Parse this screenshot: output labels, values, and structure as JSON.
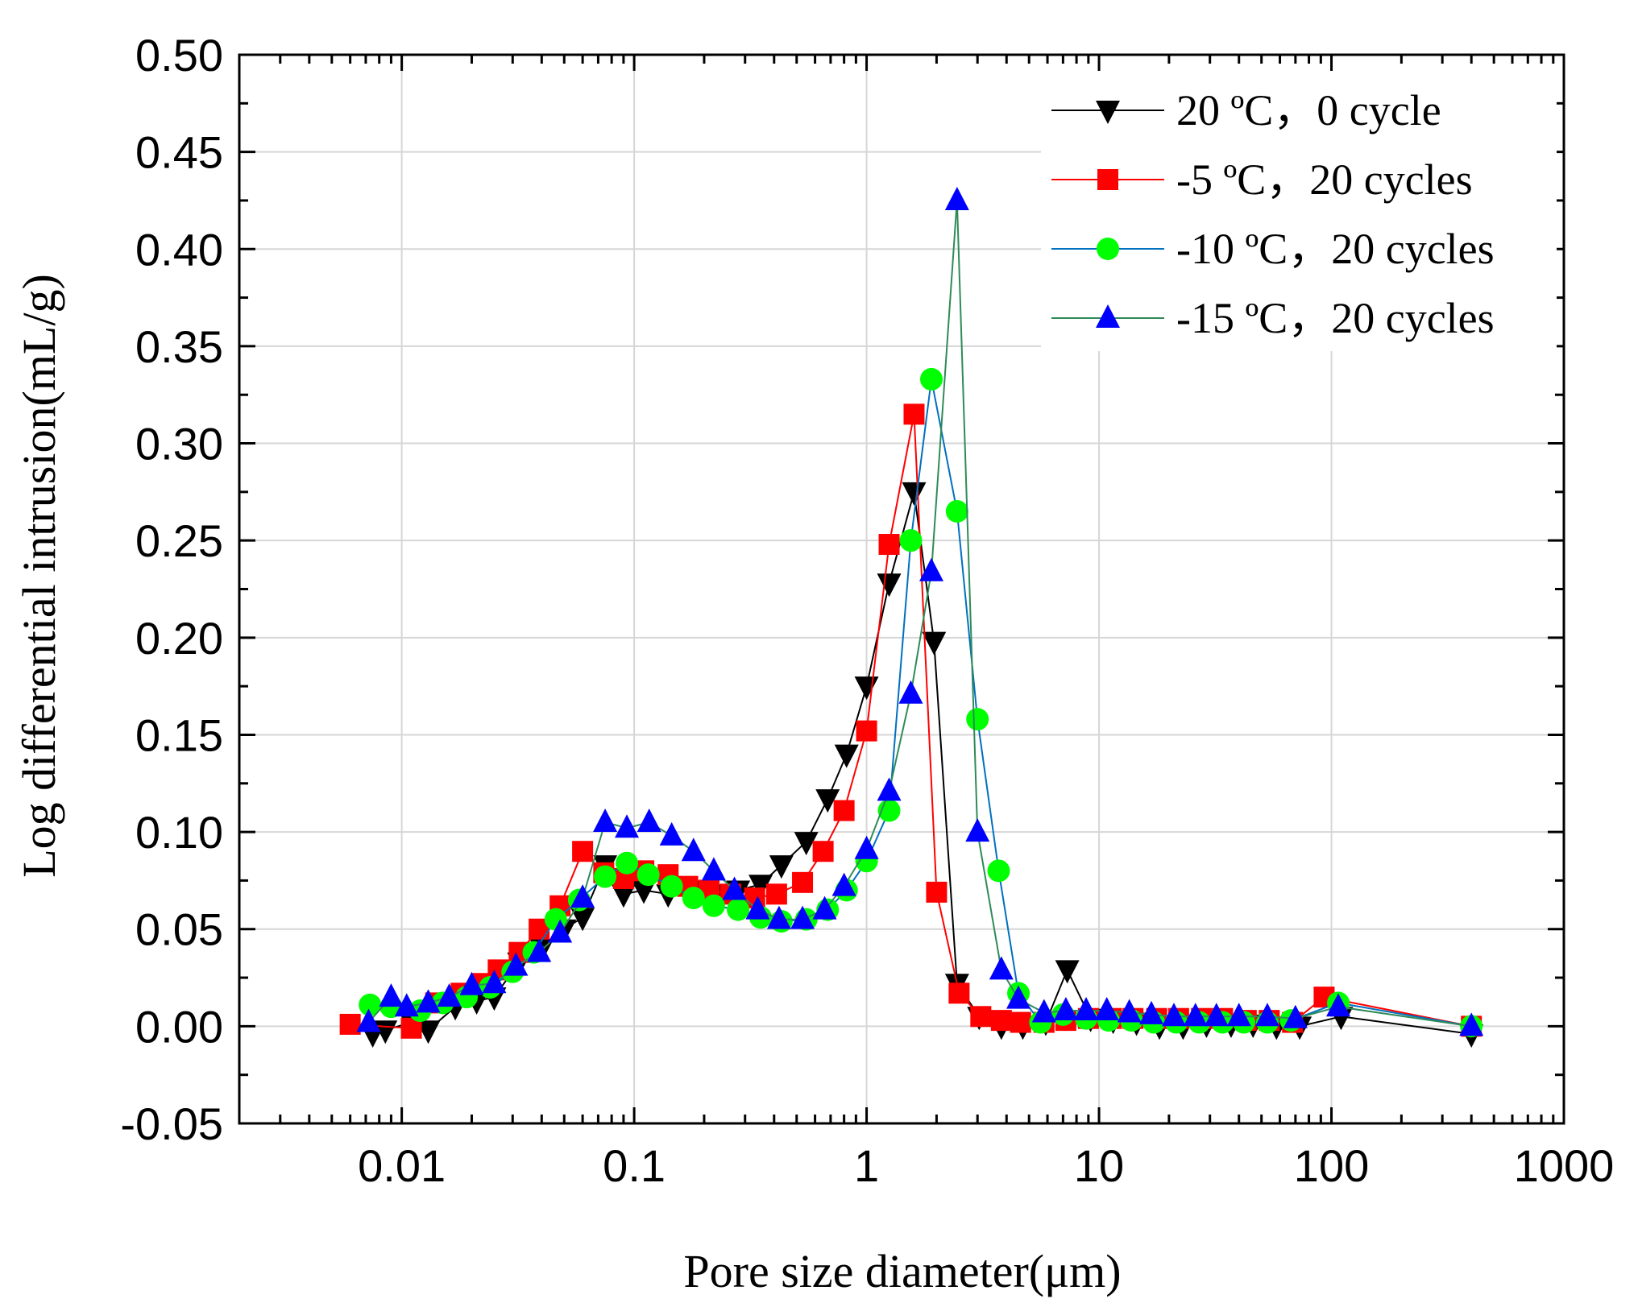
{
  "chart_data": {
    "type": "scatter",
    "xlabel": "Pore size diameter(μm)",
    "ylabel": "Log differential intrusion(mL/g)",
    "xscale": "log",
    "xlim": [
      0.002,
      1000
    ],
    "ylim": [
      -0.05,
      0.5
    ],
    "xticks": [
      0.01,
      0.1,
      1,
      10,
      100,
      1000
    ],
    "xtick_labels": [
      "0.01",
      "0.1",
      "1",
      "10",
      "100",
      "1000"
    ],
    "yticks": [
      -0.05,
      0.0,
      0.05,
      0.1,
      0.15,
      0.2,
      0.25,
      0.3,
      0.35,
      0.4,
      0.45,
      0.5
    ],
    "ytick_labels": [
      "-0.05",
      "0.00",
      "0.05",
      "0.10",
      "0.15",
      "0.20",
      "0.25",
      "0.30",
      "0.35",
      "0.40",
      "0.45",
      "0.50"
    ],
    "grid": true,
    "legend_position": "top-right",
    "series": [
      {
        "name": "20 ºC，0 cycle",
        "color": "#000000",
        "marker": "triangle-down",
        "x": [
          0.0075,
          0.0085,
          0.011,
          0.013,
          0.017,
          0.021,
          0.025,
          0.032,
          0.04,
          0.05,
          0.06,
          0.075,
          0.09,
          0.11,
          0.14,
          0.18,
          0.22,
          0.28,
          0.35,
          0.43,
          0.55,
          0.68,
          0.82,
          1.0,
          1.25,
          1.6,
          1.95,
          2.45,
          3.05,
          3.8,
          4.7,
          5.9,
          7.3,
          9.2,
          11.5,
          14.5,
          18.2,
          23,
          29,
          37,
          46,
          58,
          73,
          110,
          400
        ],
        "y": [
          -0.004,
          -0.002,
          0.002,
          -0.002,
          0.01,
          0.013,
          0.015,
          0.033,
          0.04,
          0.05,
          0.056,
          0.083,
          0.068,
          0.07,
          0.068,
          0.07,
          0.068,
          0.07,
          0.073,
          0.083,
          0.095,
          0.117,
          0.14,
          0.175,
          0.228,
          0.275,
          0.198,
          0.022,
          0.005,
          0.0,
          0.0,
          0.002,
          0.029,
          0.004,
          0.003,
          0.002,
          0.0,
          0.0,
          0.001,
          0.001,
          0.001,
          0.0,
          0.0,
          0.005,
          -0.004
        ]
      },
      {
        "name": "-5 ºC，20 cycles",
        "color": "#ff0000",
        "marker": "square",
        "x": [
          0.006,
          0.011,
          0.014,
          0.018,
          0.022,
          0.026,
          0.032,
          0.039,
          0.048,
          0.06,
          0.074,
          0.09,
          0.11,
          0.14,
          0.17,
          0.21,
          0.26,
          0.33,
          0.41,
          0.53,
          0.65,
          0.8,
          1.0,
          1.25,
          1.6,
          2.0,
          2.5,
          3.1,
          3.8,
          4.6,
          5.8,
          7.2,
          9,
          11.3,
          14,
          17.7,
          22,
          27.6,
          34,
          43,
          54,
          68,
          93,
          400
        ],
        "y": [
          0.001,
          -0.001,
          0.012,
          0.017,
          0.022,
          0.029,
          0.038,
          0.05,
          0.062,
          0.09,
          0.079,
          0.076,
          0.08,
          0.078,
          0.072,
          0.07,
          0.068,
          0.066,
          0.068,
          0.074,
          0.09,
          0.111,
          0.152,
          0.248,
          0.315,
          0.069,
          0.017,
          0.005,
          0.003,
          0.002,
          0.002,
          0.003,
          0.004,
          0.004,
          0.004,
          0.004,
          0.004,
          0.004,
          0.004,
          0.003,
          0.003,
          0.002,
          0.015,
          0.0
        ]
      },
      {
        "name": "-10 ºC，20 cycles",
        "color": "#00ff00",
        "line_color": "#0070c0",
        "marker": "circle",
        "x": [
          0.0073,
          0.009,
          0.012,
          0.015,
          0.019,
          0.024,
          0.03,
          0.037,
          0.046,
          0.058,
          0.075,
          0.093,
          0.115,
          0.145,
          0.18,
          0.22,
          0.28,
          0.35,
          0.43,
          0.55,
          0.68,
          0.82,
          1.0,
          1.25,
          1.55,
          1.9,
          2.45,
          3.0,
          3.7,
          4.5,
          5.6,
          7.0,
          8.8,
          11,
          13.8,
          17.2,
          21.5,
          27,
          34,
          42,
          53,
          67,
          107,
          400
        ],
        "y": [
          0.011,
          0.01,
          0.008,
          0.012,
          0.015,
          0.02,
          0.028,
          0.038,
          0.055,
          0.065,
          0.077,
          0.084,
          0.078,
          0.072,
          0.066,
          0.062,
          0.06,
          0.056,
          0.054,
          0.055,
          0.06,
          0.07,
          0.085,
          0.111,
          0.25,
          0.333,
          0.265,
          0.158,
          0.08,
          0.017,
          0.002,
          0.006,
          0.004,
          0.003,
          0.003,
          0.002,
          0.002,
          0.002,
          0.002,
          0.002,
          0.002,
          0.003,
          0.012,
          0.0
        ]
      },
      {
        "name": "-15 ºC，20 cycles",
        "color": "#0000ff",
        "line_color": "#2e8b57",
        "marker": "triangle-up",
        "x": [
          0.0072,
          0.009,
          0.0105,
          0.013,
          0.016,
          0.02,
          0.025,
          0.031,
          0.039,
          0.048,
          0.06,
          0.075,
          0.093,
          0.116,
          0.145,
          0.18,
          0.22,
          0.27,
          0.34,
          0.42,
          0.53,
          0.66,
          0.8,
          1.0,
          1.25,
          1.55,
          1.9,
          2.45,
          3.0,
          3.8,
          4.5,
          5.8,
          7.2,
          8.8,
          10.8,
          13.5,
          16.8,
          21,
          26,
          32,
          40,
          53,
          70,
          107,
          400
        ],
        "y": [
          0.002,
          0.015,
          0.01,
          0.012,
          0.015,
          0.021,
          0.022,
          0.031,
          0.038,
          0.048,
          0.066,
          0.105,
          0.102,
          0.105,
          0.098,
          0.09,
          0.08,
          0.07,
          0.06,
          0.055,
          0.055,
          0.06,
          0.072,
          0.091,
          0.121,
          0.171,
          0.234,
          0.425,
          0.1,
          0.029,
          0.014,
          0.007,
          0.008,
          0.008,
          0.008,
          0.007,
          0.006,
          0.005,
          0.005,
          0.005,
          0.005,
          0.005,
          0.004,
          0.01,
          0.0
        ]
      }
    ]
  }
}
